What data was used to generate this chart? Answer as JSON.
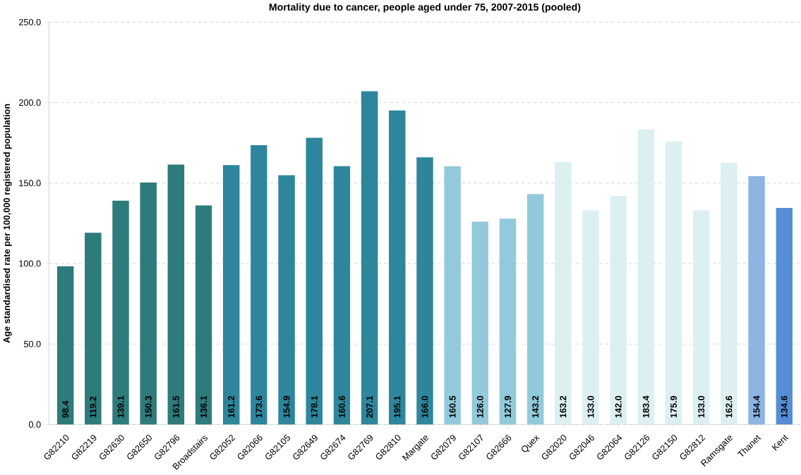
{
  "chart_data": {
    "type": "bar",
    "title": "Mortality due to cancer, people aged under 75, 2007-2015 (pooled)",
    "ylabel": "Age standardised rate per 100,000 registered population",
    "categories": [
      "G82210",
      "G82219",
      "G82630",
      "G82650",
      "G82796",
      "Broadstairs",
      "G82052",
      "G82066",
      "G82105",
      "G82649",
      "G82674",
      "G82769",
      "G82810",
      "Margate",
      "G82079",
      "G82107",
      "G82666",
      "Quex",
      "G82020",
      "G82046",
      "G82064",
      "G82126",
      "G82150",
      "G82812",
      "Ramsgate",
      "Thanet",
      "Kent"
    ],
    "values": [
      98.4,
      119.2,
      139.1,
      150.3,
      161.5,
      136.1,
      161.2,
      173.6,
      154.9,
      178.1,
      160.6,
      207.1,
      195.1,
      166.0,
      160.5,
      126.0,
      127.9,
      143.2,
      163.2,
      133.0,
      142.0,
      183.4,
      175.9,
      133.0,
      162.6,
      154.4,
      134.6
    ],
    "colors": [
      "#2e7b7b",
      "#2e7b7b",
      "#2e7b7b",
      "#2e7b7b",
      "#2e7b7b",
      "#2e7b7b",
      "#2e869c",
      "#2e869c",
      "#2e869c",
      "#2e869c",
      "#2e869c",
      "#2e869c",
      "#2e869c",
      "#2e869c",
      "#92cadb",
      "#92cadb",
      "#92cadb",
      "#92cadb",
      "#dcf0f2",
      "#dcf0f2",
      "#dcf0f2",
      "#dcf0f2",
      "#dcf0f2",
      "#dcf0f2",
      "#dcf0f2",
      "#8eb4e3",
      "#558ed5"
    ],
    "ylim": [
      0,
      250
    ],
    "yticks": [
      {
        "value": 0,
        "label": "0.0"
      },
      {
        "value": 50,
        "label": "50.0"
      },
      {
        "value": 100,
        "label": "100.0"
      },
      {
        "value": 150,
        "label": "150.0"
      },
      {
        "value": 200,
        "label": "200.0"
      },
      {
        "value": 250,
        "label": "250.0"
      }
    ],
    "value_labels": [
      "98.4",
      "119.2",
      "139.1",
      "150.3",
      "161.5",
      "136.1",
      "161.2",
      "173.6",
      "154.9",
      "178.1",
      "160.6",
      "207.1",
      "195.1",
      "166.0",
      "160.5",
      "126.0",
      "127.9",
      "143.2",
      "163.2",
      "133.0",
      "142.0",
      "183.4",
      "175.9",
      "133.0",
      "162.6",
      "154.4",
      "134.6"
    ],
    "grid": "y"
  }
}
